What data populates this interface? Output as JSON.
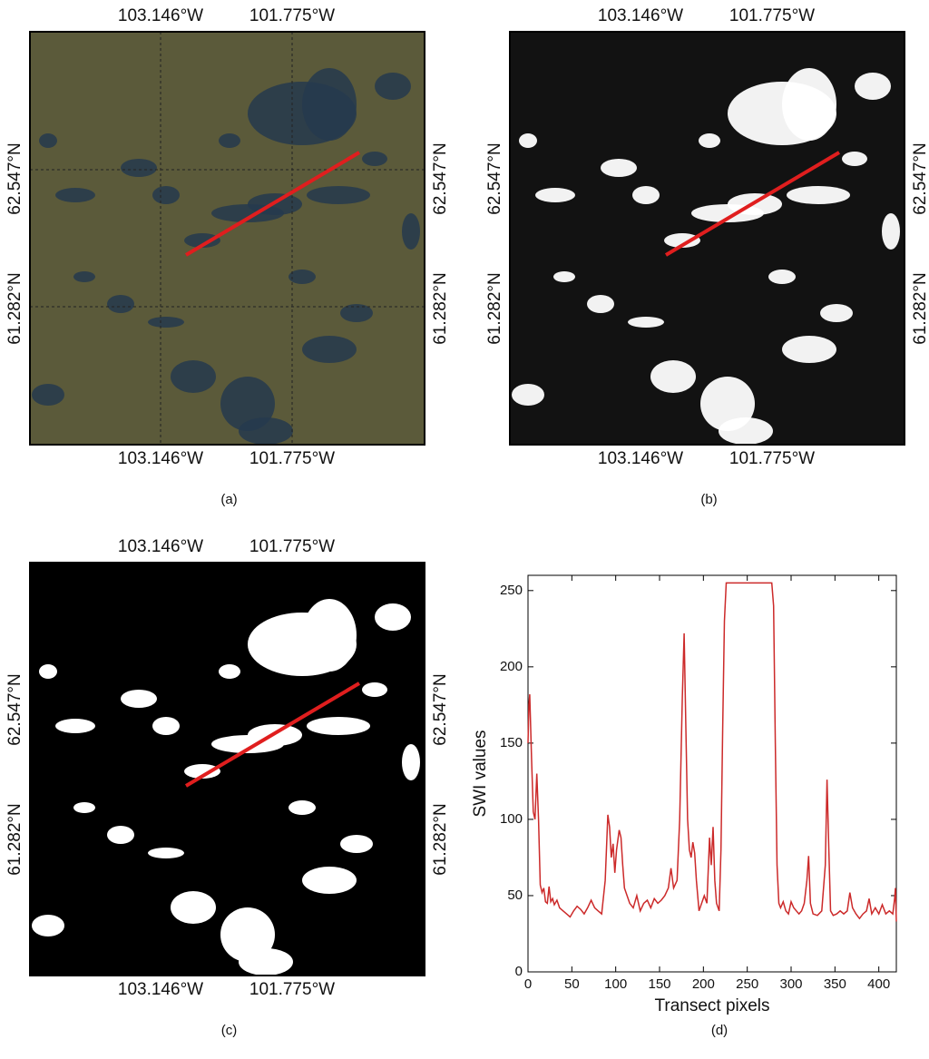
{
  "maps": [
    {
      "caption": "(a)",
      "top_labels": [
        "103.146°W",
        "101.775°W"
      ],
      "bottom_labels": [
        "103.146°W",
        "101.775°W"
      ],
      "left_labels": [
        "62.547°N",
        "61.282°N"
      ],
      "right_labels": [
        "62.547°N",
        "61.282°N"
      ]
    },
    {
      "caption": "(b)",
      "top_labels": [
        "103.146°W",
        "101.775°W"
      ],
      "bottom_labels": [
        "103.146°W",
        "101.775°W"
      ],
      "left_labels": [
        "62.547°N",
        "61.282°N"
      ],
      "right_labels": [
        "62.547°N",
        "61.282°N"
      ]
    },
    {
      "caption": "(c)",
      "top_labels": [
        "103.146°W",
        "101.775°W"
      ],
      "bottom_labels": [
        "103.146°W",
        "101.775°W"
      ],
      "left_labels": [
        "62.547°N",
        "61.282°N"
      ],
      "right_labels": [
        "62.547°N",
        "61.282°N"
      ]
    }
  ],
  "chart_data": {
    "type": "line",
    "caption": "(d)",
    "x_label": "Transect pixels",
    "y_label": "SWI values",
    "color": "#cc2a2a",
    "x": [
      0,
      1,
      2,
      4,
      6,
      8,
      10,
      12,
      14,
      16,
      18,
      20,
      22,
      24,
      26,
      28,
      30,
      33,
      36,
      40,
      44,
      48,
      52,
      56,
      60,
      64,
      68,
      72,
      76,
      80,
      84,
      88,
      91,
      93,
      95,
      97,
      99,
      101,
      104,
      106,
      108,
      110,
      113,
      116,
      120,
      124,
      128,
      132,
      136,
      140,
      144,
      148,
      152,
      156,
      160,
      163,
      166,
      170,
      173,
      176,
      178,
      180,
      182,
      184,
      186,
      188,
      190,
      192,
      195,
      198,
      201,
      204,
      207,
      209,
      211,
      213,
      215,
      218,
      220,
      222,
      224,
      226,
      230,
      240,
      250,
      260,
      270,
      278,
      280,
      282,
      284,
      286,
      288,
      291,
      294,
      297,
      300,
      303,
      306,
      309,
      312,
      315,
      318,
      320,
      322,
      325,
      330,
      335,
      339,
      341,
      343,
      345,
      348,
      352,
      356,
      360,
      364,
      367,
      370,
      374,
      378,
      382,
      386,
      389,
      392,
      396,
      400,
      404,
      408,
      412,
      416,
      418,
      419,
      420
    ],
    "values": [
      150,
      175,
      182,
      140,
      105,
      100,
      130,
      100,
      57,
      52,
      55,
      46,
      45,
      56,
      46,
      48,
      44,
      47,
      42,
      40,
      38,
      36,
      40,
      43,
      41,
      38,
      42,
      47,
      42,
      40,
      38,
      60,
      103,
      95,
      75,
      84,
      65,
      80,
      93,
      88,
      70,
      55,
      50,
      45,
      42,
      50,
      40,
      45,
      47,
      42,
      48,
      45,
      47,
      50,
      55,
      68,
      55,
      60,
      100,
      180,
      222,
      160,
      100,
      80,
      75,
      85,
      78,
      60,
      40,
      45,
      50,
      45,
      88,
      70,
      95,
      60,
      45,
      40,
      80,
      160,
      230,
      255,
      255,
      255,
      255,
      255,
      255,
      255,
      240,
      150,
      70,
      45,
      42,
      46,
      40,
      38,
      46,
      42,
      40,
      38,
      40,
      45,
      60,
      76,
      45,
      38,
      37,
      40,
      70,
      126,
      80,
      40,
      37,
      38,
      40,
      38,
      40,
      52,
      42,
      38,
      35,
      38,
      40,
      48,
      38,
      42,
      38,
      44,
      38,
      40,
      38,
      48,
      55,
      33
    ],
    "xlim": [
      0,
      420
    ],
    "ylim": [
      0,
      260
    ],
    "xticks": [
      0,
      50,
      100,
      150,
      200,
      250,
      300,
      350,
      400
    ],
    "yticks": [
      0,
      50,
      100,
      150,
      200,
      250
    ]
  }
}
